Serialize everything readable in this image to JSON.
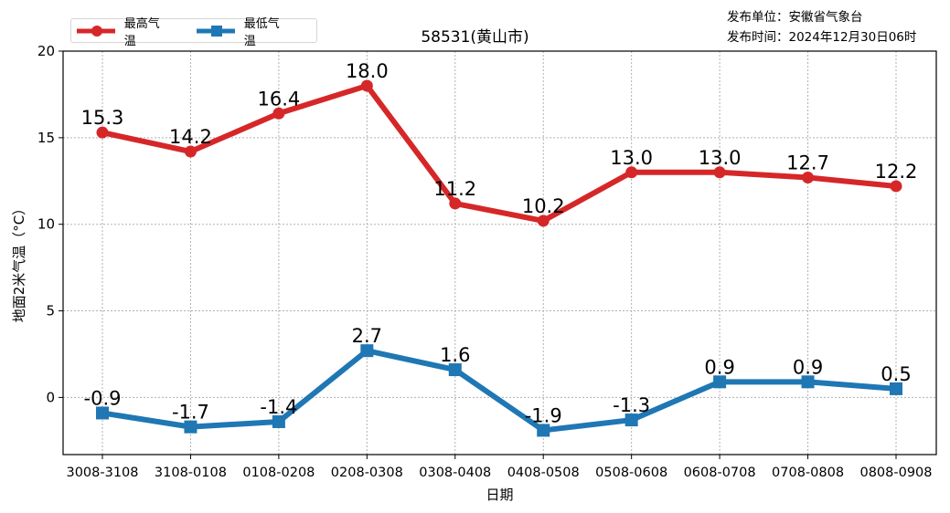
{
  "chart_data": {
    "type": "line",
    "title": "58531(黄山市)",
    "xlabel": "日期",
    "ylabel": "地面2米气温（°C）",
    "categories": [
      "3008-3108",
      "3108-0108",
      "0108-0208",
      "0208-0308",
      "0308-0408",
      "0408-0508",
      "0508-0608",
      "0608-0708",
      "0708-0808",
      "0808-0908"
    ],
    "series": [
      {
        "name": "最高气温",
        "color": "#d62728",
        "marker": "circle",
        "values": [
          15.3,
          14.2,
          16.4,
          18.0,
          11.2,
          10.2,
          13.0,
          13.0,
          12.7,
          12.2
        ],
        "labels": [
          "15.3",
          "14.2",
          "16.4",
          "18.0",
          "11.2",
          "10.2",
          "13.0",
          "13.0",
          "12.7",
          "12.2"
        ]
      },
      {
        "name": "最低气温",
        "color": "#1f77b4",
        "marker": "square",
        "values": [
          -0.9,
          -1.7,
          -1.4,
          2.7,
          1.6,
          -1.9,
          -1.3,
          0.9,
          0.9,
          0.5
        ],
        "labels": [
          "-0.9",
          "-1.7",
          "-1.4",
          "2.7",
          "1.6",
          "-1.9",
          "-1.3",
          "0.9",
          "0.9",
          "0.5"
        ]
      }
    ],
    "yticks": [
      0,
      5,
      10,
      15,
      20
    ],
    "ylim": [
      -3.3,
      20
    ],
    "grid": true,
    "legend_position": "upper left (above axes)"
  },
  "header": {
    "title": "58531(黄山市)",
    "publisher_line": "发布单位：安徽省气象台",
    "time_line": "发布时间：2024年12月30日06时"
  },
  "legend": {
    "items": [
      {
        "label": "最高气温",
        "color": "#d62728"
      },
      {
        "label": "最低气温",
        "color": "#1f77b4"
      }
    ]
  }
}
